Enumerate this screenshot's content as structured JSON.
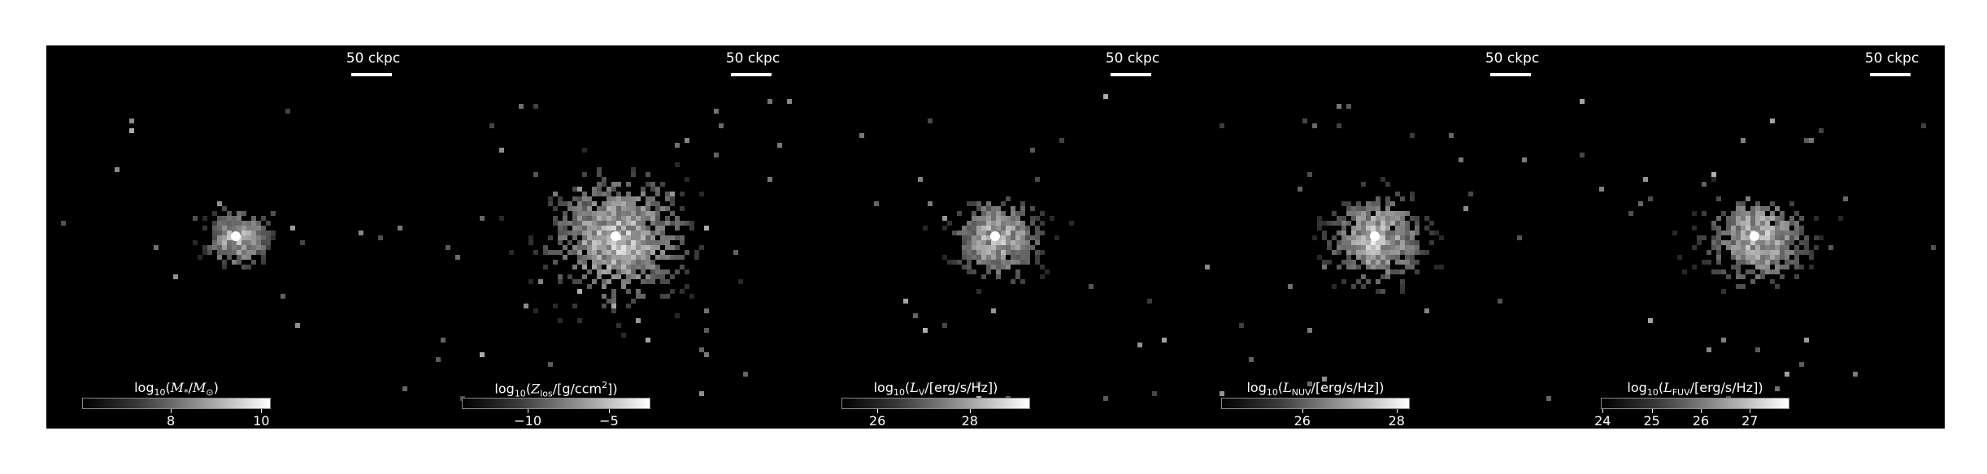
{
  "figure": {
    "panels": [
      {
        "id": "stellar-mass",
        "scale_label": "50 ckpc",
        "cbar": {
          "prefix": "log",
          "base": "10",
          "open": "(",
          "var": "M",
          "var_sub": "*",
          "mid": "/",
          "var2": "M",
          "var2_sub": "⊙",
          "rest": ")",
          "sup": ""
        },
        "ticks": [
          {
            "label": "8",
            "frac": 0.47
          },
          {
            "label": "10",
            "frac": 0.95
          }
        ],
        "spread": 0.7,
        "core": 1.0
      },
      {
        "id": "metallicity",
        "scale_label": "50 ckpc",
        "cbar": {
          "prefix": "log",
          "base": "10",
          "open": "(",
          "var": "Z",
          "var_sub": "los",
          "mid": "/[g/ccm",
          "var2": "",
          "var2_sub": "",
          "rest": "])",
          "sup": "2"
        },
        "ticks": [
          {
            "label": "−10",
            "frac": 0.35
          },
          {
            "label": "−5",
            "frac": 0.78
          }
        ],
        "spread": 1.6,
        "core": 1.0
      },
      {
        "id": "lum-v",
        "scale_label": "50 ckpc",
        "cbar": {
          "prefix": "log",
          "base": "10",
          "open": "(",
          "var": "L",
          "var_sub": "V",
          "mid": "/[erg/s/Hz])",
          "var2": "",
          "var2_sub": "",
          "rest": "",
          "sup": ""
        },
        "ticks": [
          {
            "label": "26",
            "frac": 0.19
          },
          {
            "label": "28",
            "frac": 0.68
          }
        ],
        "spread": 1.0,
        "core": 1.0
      },
      {
        "id": "lum-nuv",
        "scale_label": "50 ckpc",
        "cbar": {
          "prefix": "log",
          "base": "10",
          "open": "(",
          "var": "L",
          "var_sub": "NUV",
          "mid": "/[erg/s/Hz])",
          "var2": "",
          "var2_sub": "",
          "rest": "",
          "sup": ""
        },
        "ticks": [
          {
            "label": "26",
            "frac": 0.43
          },
          {
            "label": "28",
            "frac": 0.93
          }
        ],
        "spread": 1.1,
        "core": 1.0
      },
      {
        "id": "lum-fuv",
        "scale_label": "50 ckpc",
        "cbar": {
          "prefix": "log",
          "base": "10",
          "open": "(",
          "var": "L",
          "var_sub": "FUV",
          "mid": "/[erg/s/Hz])",
          "var2": "",
          "var2_sub": "",
          "rest": "",
          "sup": ""
        },
        "ticks": [
          {
            "label": "24",
            "frac": 0.01
          },
          {
            "label": "25",
            "frac": 0.27
          },
          {
            "label": "26",
            "frac": 0.53
          },
          {
            "label": "27",
            "frac": 0.79
          }
        ],
        "spread": 1.15,
        "core": 1.0
      }
    ]
  }
}
